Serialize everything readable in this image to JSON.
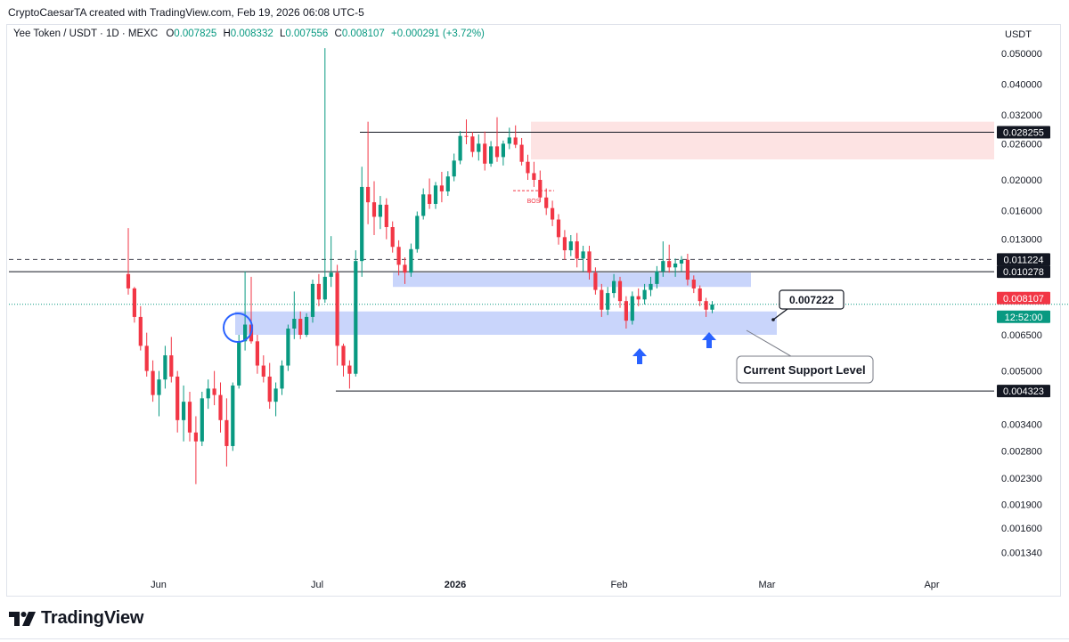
{
  "credit": "CryptoCaesarTA created with TradingView.com, Feb 19, 2026 06:08 UTC-5",
  "ohlc": {
    "symbol": "Yee Token / USDT · 1D · MEXC",
    "o_label": "O",
    "o": "0.007825",
    "h_label": "H",
    "h": "0.008332",
    "l_label": "L",
    "l": "0.007556",
    "c_label": "C",
    "c": "0.008107",
    "change": "+0.000291 (+3.72%)"
  },
  "brand": {
    "name": "TradingView"
  },
  "colors": {
    "up": "#089981",
    "down": "#f23645",
    "zone_blue": "#c3d0fb",
    "zone_red": "#fde2e2",
    "arrow": "#2962ff",
    "line": "#131722"
  },
  "chart_data": {
    "type": "candlestick",
    "title": "",
    "y_scale": "log",
    "y_axis_title": "USDT",
    "y_ticks": [
      "0.050000",
      "0.040000",
      "0.032000",
      "0.026000",
      "0.020000",
      "0.016000",
      "0.013000",
      "0.006500",
      "0.005000",
      "0.003400",
      "0.002800",
      "0.002300",
      "0.001900",
      "0.001600",
      "0.001340"
    ],
    "x_ticks": [
      "Jun",
      "Jul",
      "2026",
      "Feb",
      "Mar",
      "Apr"
    ],
    "price_labels": [
      {
        "text": "0.028255",
        "style": "black"
      },
      {
        "text": "0.011224",
        "style": "black"
      },
      {
        "text": "0.010278",
        "style": "black"
      },
      {
        "text": "0.008107",
        "style": "red"
      },
      {
        "text": "12:52:00",
        "style": "green"
      },
      {
        "text": "0.004323",
        "style": "black"
      }
    ],
    "horizontal_levels": [
      {
        "price": 0.028255,
        "style": "solid"
      },
      {
        "price": 0.011224,
        "style": "dashed"
      },
      {
        "price": 0.010278,
        "style": "solid"
      },
      {
        "price": 0.008107,
        "style": "dotted"
      },
      {
        "price": 0.004323,
        "style": "solid"
      }
    ],
    "zones": [
      {
        "color": "red",
        "top": 0.0305,
        "bottom": 0.0232
      },
      {
        "color": "blue",
        "top": 0.0102,
        "bottom": 0.0092
      },
      {
        "color": "blue",
        "top": 0.0077,
        "bottom": 0.0065
      }
    ],
    "annotations": {
      "bos": "BOS",
      "price_callout": "0.007222",
      "support_label": "Current Support Level"
    },
    "candles": [
      [
        0.0101,
        0.0141,
        0.0087,
        0.0091
      ],
      [
        0.0091,
        0.0092,
        0.0071,
        0.0074
      ],
      [
        0.0074,
        0.008,
        0.0058,
        0.006
      ],
      [
        0.006,
        0.0066,
        0.0048,
        0.005
      ],
      [
        0.005,
        0.0054,
        0.004,
        0.0042
      ],
      [
        0.0042,
        0.005,
        0.0036,
        0.0047
      ],
      [
        0.0047,
        0.006,
        0.0044,
        0.0056
      ],
      [
        0.0056,
        0.0064,
        0.0046,
        0.0048
      ],
      [
        0.0048,
        0.005,
        0.0032,
        0.0035
      ],
      [
        0.0035,
        0.0045,
        0.003,
        0.004
      ],
      [
        0.004,
        0.0043,
        0.003,
        0.0032
      ],
      [
        0.0032,
        0.0036,
        0.0022,
        0.003
      ],
      [
        0.003,
        0.0043,
        0.0029,
        0.0041
      ],
      [
        0.0041,
        0.0047,
        0.0038,
        0.0044
      ],
      [
        0.0044,
        0.005,
        0.0039,
        0.0042
      ],
      [
        0.0042,
        0.0046,
        0.0032,
        0.0035
      ],
      [
        0.0035,
        0.0041,
        0.0025,
        0.0029
      ],
      [
        0.0029,
        0.0046,
        0.0028,
        0.0045
      ],
      [
        0.0045,
        0.0065,
        0.0044,
        0.0062
      ],
      [
        0.0062,
        0.0103,
        0.0058,
        0.007
      ],
      [
        0.007,
        0.0099,
        0.0061,
        0.0062
      ],
      [
        0.0062,
        0.0065,
        0.0049,
        0.0052
      ],
      [
        0.0052,
        0.0056,
        0.0046,
        0.0048
      ],
      [
        0.0048,
        0.0053,
        0.0038,
        0.004
      ],
      [
        0.004,
        0.0046,
        0.0036,
        0.0044
      ],
      [
        0.0044,
        0.0054,
        0.0042,
        0.0052
      ],
      [
        0.0052,
        0.007,
        0.005,
        0.0068
      ],
      [
        0.0068,
        0.0089,
        0.0063,
        0.0073
      ],
      [
        0.0073,
        0.0077,
        0.0063,
        0.0065
      ],
      [
        0.0065,
        0.0076,
        0.0064,
        0.0074
      ],
      [
        0.0074,
        0.0097,
        0.0071,
        0.0094
      ],
      [
        0.0094,
        0.0101,
        0.008,
        0.0084
      ],
      [
        0.0084,
        0.052,
        0.0082,
        0.0099
      ],
      [
        0.0099,
        0.0133,
        0.0092,
        0.0102
      ],
      [
        0.0102,
        0.0108,
        0.0052,
        0.006
      ],
      [
        0.006,
        0.0061,
        0.0048,
        0.0052
      ],
      [
        0.0052,
        0.0054,
        0.0044,
        0.0049
      ],
      [
        0.0049,
        0.012,
        0.0048,
        0.0111
      ],
      [
        0.0111,
        0.022,
        0.0099,
        0.019
      ],
      [
        0.019,
        0.0305,
        0.0145,
        0.017
      ],
      [
        0.017,
        0.0198,
        0.0134,
        0.0153
      ],
      [
        0.0153,
        0.0178,
        0.014,
        0.0167
      ],
      [
        0.0167,
        0.0175,
        0.013,
        0.0142
      ],
      [
        0.0142,
        0.0148,
        0.0118,
        0.0123
      ],
      [
        0.0123,
        0.0129,
        0.01,
        0.0108
      ],
      [
        0.0108,
        0.0114,
        0.0094,
        0.0102
      ],
      [
        0.0102,
        0.0126,
        0.0099,
        0.0121
      ],
      [
        0.0121,
        0.0159,
        0.0118,
        0.0154
      ],
      [
        0.0154,
        0.0188,
        0.015,
        0.018
      ],
      [
        0.018,
        0.0202,
        0.0162,
        0.0168
      ],
      [
        0.0168,
        0.0197,
        0.0162,
        0.0192
      ],
      [
        0.0192,
        0.0212,
        0.017,
        0.0184
      ],
      [
        0.0184,
        0.0213,
        0.0178,
        0.0205
      ],
      [
        0.0205,
        0.0242,
        0.0198,
        0.023
      ],
      [
        0.023,
        0.0285,
        0.0224,
        0.0275
      ],
      [
        0.0275,
        0.031,
        0.0259,
        0.0274
      ],
      [
        0.0274,
        0.0283,
        0.0236,
        0.0245
      ],
      [
        0.0245,
        0.0278,
        0.023,
        0.026
      ],
      [
        0.026,
        0.0284,
        0.0214,
        0.0225
      ],
      [
        0.0225,
        0.0265,
        0.022,
        0.0255
      ],
      [
        0.0255,
        0.0315,
        0.0228,
        0.0236
      ],
      [
        0.0236,
        0.0266,
        0.0222,
        0.026
      ],
      [
        0.026,
        0.0292,
        0.025,
        0.0272
      ],
      [
        0.0272,
        0.0297,
        0.0252,
        0.0258
      ],
      [
        0.0258,
        0.0271,
        0.0222,
        0.0228
      ],
      [
        0.0228,
        0.024,
        0.02,
        0.021
      ],
      [
        0.021,
        0.0228,
        0.019,
        0.02
      ],
      [
        0.02,
        0.0214,
        0.017,
        0.0176
      ],
      [
        0.0176,
        0.0188,
        0.0155,
        0.0163
      ],
      [
        0.0163,
        0.0172,
        0.0143,
        0.015
      ],
      [
        0.015,
        0.0156,
        0.0125,
        0.0132
      ],
      [
        0.0132,
        0.0139,
        0.0112,
        0.012
      ],
      [
        0.012,
        0.0134,
        0.0115,
        0.0128
      ],
      [
        0.0128,
        0.0136,
        0.0106,
        0.0113
      ],
      [
        0.0113,
        0.0124,
        0.0103,
        0.0119
      ],
      [
        0.0119,
        0.0124,
        0.0097,
        0.0102
      ],
      [
        0.0102,
        0.0106,
        0.0087,
        0.009
      ],
      [
        0.009,
        0.0094,
        0.0074,
        0.0078
      ],
      [
        0.0078,
        0.0092,
        0.0075,
        0.0088
      ],
      [
        0.0088,
        0.0101,
        0.0085,
        0.0096
      ],
      [
        0.0096,
        0.0099,
        0.0079,
        0.0083
      ],
      [
        0.0083,
        0.0086,
        0.0068,
        0.0072
      ],
      [
        0.0072,
        0.0089,
        0.007,
        0.0086
      ],
      [
        0.0086,
        0.0091,
        0.008,
        0.0084
      ],
      [
        0.0084,
        0.0094,
        0.0081,
        0.009
      ],
      [
        0.009,
        0.0099,
        0.0086,
        0.0094
      ],
      [
        0.0094,
        0.0107,
        0.0091,
        0.0103
      ],
      [
        0.0103,
        0.0128,
        0.0099,
        0.0111
      ],
      [
        0.0111,
        0.0125,
        0.0102,
        0.0106
      ],
      [
        0.0106,
        0.0113,
        0.0099,
        0.0109
      ],
      [
        0.0109,
        0.0115,
        0.0103,
        0.0112
      ],
      [
        0.0112,
        0.0117,
        0.0093,
        0.0097
      ],
      [
        0.0097,
        0.01,
        0.0088,
        0.0091
      ],
      [
        0.0091,
        0.0093,
        0.008,
        0.0083
      ],
      [
        0.0083,
        0.0085,
        0.0074,
        0.0078
      ],
      [
        0.0078,
        0.0083,
        0.0076,
        0.0081
      ]
    ]
  }
}
